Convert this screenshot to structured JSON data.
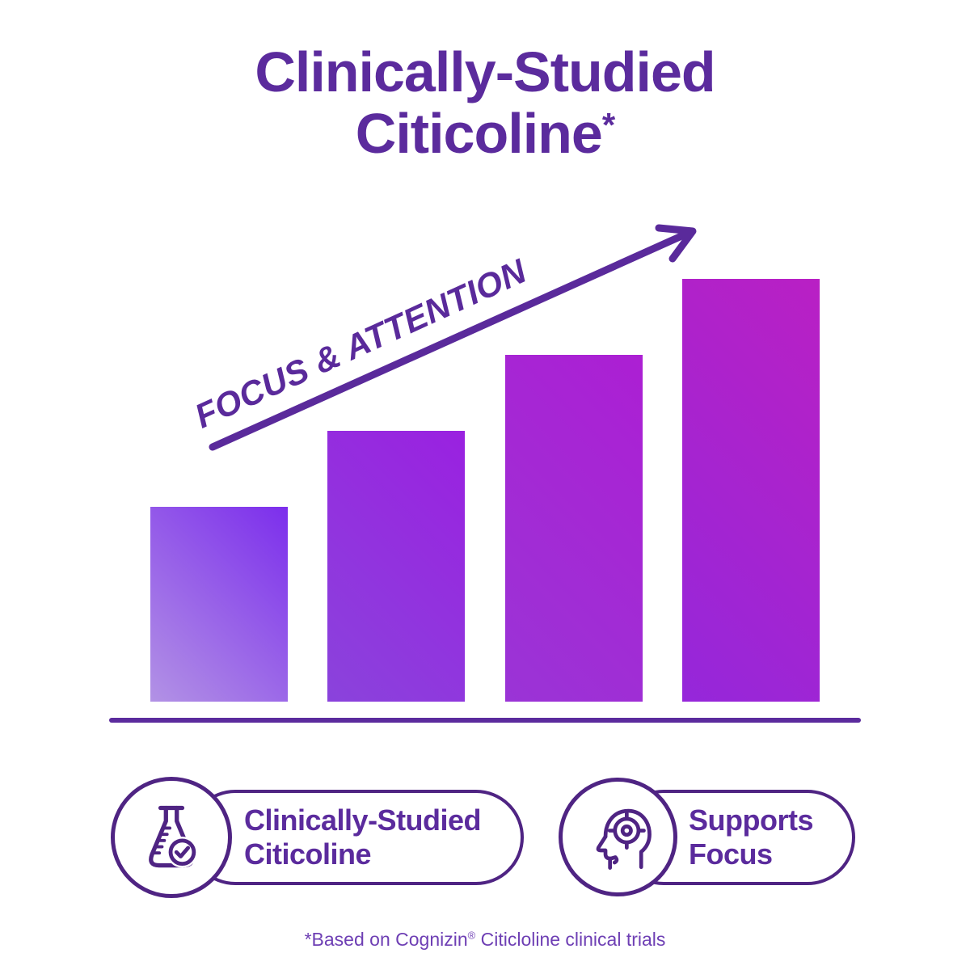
{
  "page": {
    "background": "#ffffff"
  },
  "title": {
    "line1": "Clinically-Studied",
    "line2": "Citicoline",
    "superscript": "*",
    "color": "#5b2b9d"
  },
  "chart": {
    "arrow_label": "FOCUS & ATTENTION",
    "arrow_color": "#5a2a9b",
    "baseline_color": "#5b2b9d"
  },
  "chart_data": {
    "type": "bar",
    "title": "Clinically-Studied Citicoline*",
    "annotation": "FOCUS & ATTENTION",
    "trend": "increasing",
    "categories": [
      "bar-1",
      "bar-2",
      "bar-3",
      "bar-4"
    ],
    "values": [
      46,
      64,
      82,
      100
    ],
    "unit": "relative height, percent of tallest bar",
    "xlabel": "",
    "ylabel": "",
    "axes_labeled": false,
    "grid": false,
    "legend": false,
    "bar_gradients": [
      [
        "#b292e5",
        "#7c2eec"
      ],
      [
        "#8a43dc",
        "#9a21e0"
      ],
      [
        "#9a34d6",
        "#ac1fd3"
      ],
      [
        "#9527da",
        "#b920c4"
      ]
    ]
  },
  "badges": [
    {
      "icon": "flask-check-icon",
      "lines": [
        "Clinically-Studied",
        "Citicoline"
      ]
    },
    {
      "icon": "head-target-icon",
      "lines": [
        "Supports",
        "Focus"
      ]
    }
  ],
  "badge_style": {
    "outline_color": "#4f2483",
    "text_color": "#5b2b9d"
  },
  "footnote": {
    "part1": "*Based on Cognizin",
    "registered": "®",
    "part2": " Citicloline clinical trials",
    "color": "#6e3fb4"
  }
}
